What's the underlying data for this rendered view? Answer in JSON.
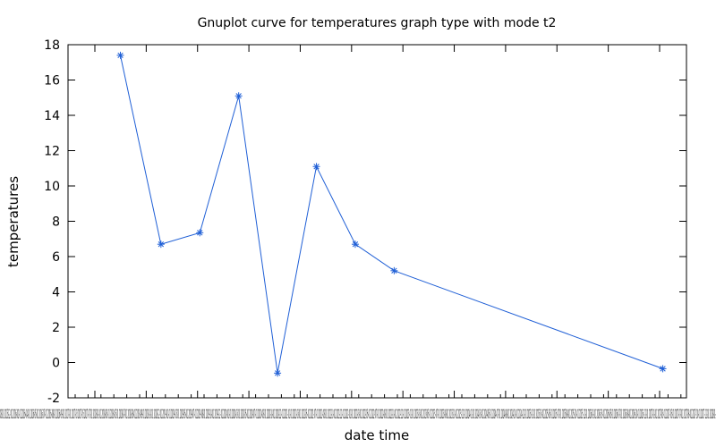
{
  "chart_data": {
    "type": "line",
    "title": "Gnuplot curve for temperatures graph type with mode t2",
    "xlabel": "date time",
    "ylabel": "temperatures",
    "ylim": [
      -2,
      18
    ],
    "y_ticks": [
      -2,
      0,
      2,
      4,
      6,
      8,
      10,
      12,
      14,
      16,
      18
    ],
    "x_tick_labels": [
      "2015-07-01",
      "2015-08-01",
      "2015-09-01",
      "2015-10-01",
      "2015-11-01",
      "2015-12-01",
      "2016-01-01",
      "2016-02-01",
      "2016-03-01",
      "2016-04-01",
      "2016-05-01",
      "2016-06-01"
    ],
    "x_tick_label_text": "-01 2015-08-01 2015-12-01 2016-02-01 2016-04-01 2016-05-01 2016-07-01 2016-08-01 2016-09-01 2017-01 2017-03 2017-05 2017-07-01 2018-01-01 2018-03-01 2018-05-01 2018-07-01 2018-08-01 2018-09-01 2018-10-01 2018-12-01 2019-01-01 2019-03-01 2019-05-01 2019-07-01 2019-08-01 2019-10-01 2019-12-01 2020-01-01 2020-03-01 2020-05-01 2020-07-01 2020-08-01 2020-10-01 2020-12-01 2021-01-01 2021-03-01 2021-05-01 2021-07-01 2021-08-01 2021-10-01 2021-12-01 2022-01-01 2022-03-01 2022-05-01 2022-07-01 2022-08-01 2022-10-01 2022-12-01 2023-01-01 2023-03-01 2023-05-01 2023-07-01 2023-08-01 2023-10-01 2023-12-01 2024-01-01 2024-03-01 2024-05-01 2024-07-01 2024-08-01 2024-10-01 2024-12-01 2025-01-01 2025-03-01 2025-05-01 2025-07-01 2025-08-01 2025-10-01 2025-12-01 2026-01-01 2026-03-01 2026-05-01 2026-07-01 2026-08-01 2026-10-01 2026-12-01 2027-01-01 2027-03-01 2027-05-01 2027-07-01 2027-08-01 2027-10-01 2027-12-01 2028-01-01",
    "grid": false,
    "legend": "none",
    "series": [
      {
        "color": "#1f5fd6",
        "marker": "asterisk",
        "points": [
          {
            "x": "2015-08-15",
            "y": 17.4
          },
          {
            "x": "2015-09-08",
            "y": 6.7
          },
          {
            "x": "2015-10-01",
            "y": 7.35
          },
          {
            "x": "2015-10-24",
            "y": 15.1
          },
          {
            "x": "2015-11-16",
            "y": -0.6
          },
          {
            "x": "2015-12-09",
            "y": 11.1
          },
          {
            "x": "2016-01-01",
            "y": 6.7
          },
          {
            "x": "2016-01-24",
            "y": 5.2
          },
          {
            "x": "2016-07-01",
            "y": -0.35
          }
        ]
      }
    ]
  }
}
